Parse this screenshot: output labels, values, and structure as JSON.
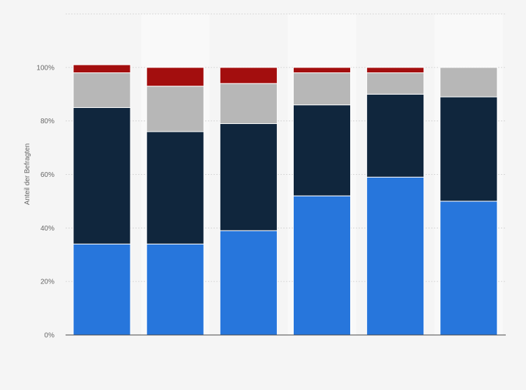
{
  "chart_data": {
    "type": "bar",
    "stacked": true,
    "title": "",
    "xlabel": "",
    "ylabel": "Anteil der Befragten",
    "ylim": [
      0,
      120
    ],
    "y_ticks": [
      0,
      20,
      40,
      60,
      80,
      100
    ],
    "y_tick_format": "{v}%",
    "grid": true,
    "legend": "none",
    "categories": [
      "",
      "",
      "",
      "",
      "",
      ""
    ],
    "series": [
      {
        "color": "#2776dc",
        "values": [
          34,
          34,
          39,
          52,
          59,
          50
        ]
      },
      {
        "color": "#10263d",
        "values": [
          51,
          42,
          40,
          34,
          31,
          39
        ]
      },
      {
        "color": "#b7b7b7",
        "values": [
          13,
          17,
          15,
          12,
          8,
          11
        ]
      },
      {
        "color": "#a30e0e",
        "values": [
          3,
          7,
          6,
          2,
          2,
          0
        ]
      }
    ]
  }
}
